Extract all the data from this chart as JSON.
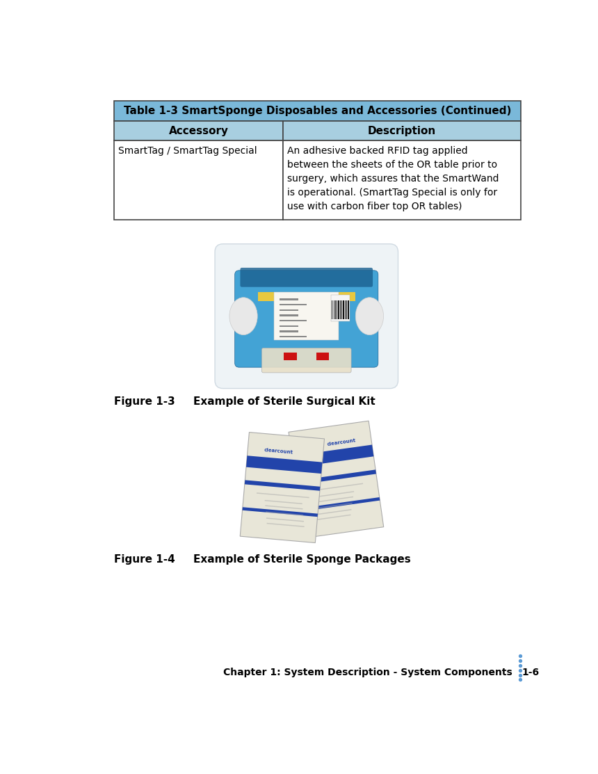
{
  "bg_color": "#ffffff",
  "table_header_bg": "#7ab8d9",
  "table_subheader_bg": "#a8cfe0",
  "table_border_color": "#444444",
  "table_title": "Table 1-3 SmartSponge Disposables and Accessories (Continued)",
  "col_headers": [
    "Accessory",
    "Description"
  ],
  "row_data": [
    [
      "SmartTag / SmartTag Special",
      "An adhesive backed RFID tag applied\nbetween the sheets of the OR table prior to\nsurgery, which assures that the SmartWand\nis operational. (SmartTag Special is only for\nuse with carbon fiber top OR tables)"
    ]
  ],
  "figure3_caption": "Figure 1-3     Example of Sterile Surgical Kit",
  "figure4_caption": "Figure 1-4     Example of Sterile Sponge Packages",
  "footer_text": "Chapter 1: System Description - System Components",
  "footer_page": "1-6",
  "dots_color": "#5b9bd5",
  "title_fontsize": 11,
  "header_fontsize": 11,
  "cell_fontsize": 10,
  "caption_fontsize": 11,
  "footer_fontsize": 10
}
